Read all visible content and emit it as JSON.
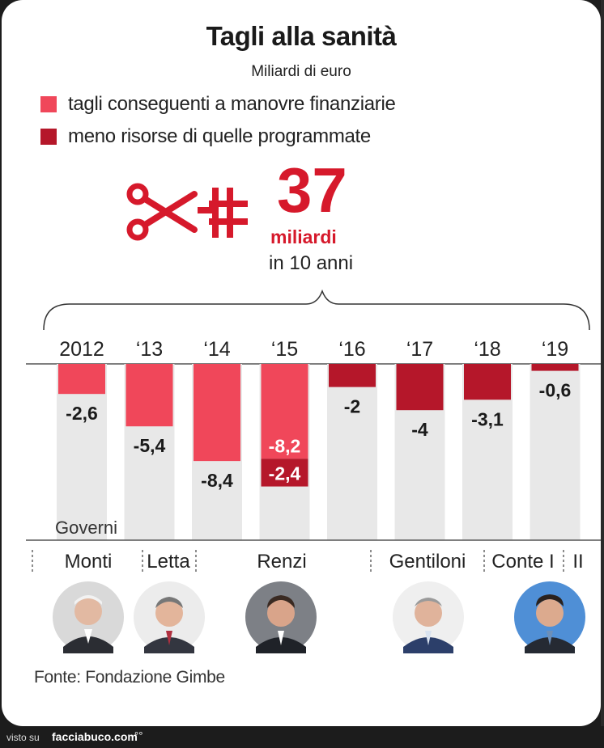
{
  "colors": {
    "pink": "#f0475a",
    "dark_red": "#b5172a",
    "big_red": "#d6192b",
    "column_bg": "#e8e8e8"
  },
  "legend": [
    {
      "label": "tagli conseguenti a manovre finanziarie",
      "color": "#f0475a"
    },
    {
      "label": "meno risorse di quelle programmate",
      "color": "#b5172a"
    }
  ],
  "headline": {
    "value": "37",
    "unit": "miliardi",
    "period": "in 10 anni",
    "icon": "scissors-cutting-cross-icon"
  },
  "chart_data": {
    "type": "bar",
    "title": "Tagli alla sanità",
    "subtitle": "Miliardi di euro",
    "categories": [
      "2012",
      "‘13",
      "‘14",
      "‘15",
      "‘16",
      "‘17",
      "‘18",
      "‘19"
    ],
    "series": [
      {
        "name": "tagli conseguenti a manovre finanziarie",
        "values": [
          -2.6,
          -5.4,
          -8.4,
          -8.2,
          0,
          0,
          0,
          0
        ]
      },
      {
        "name": "meno risorse di quelle programmate",
        "values": [
          0,
          0,
          0,
          -2.4,
          -2,
          -4,
          -3.1,
          -0.6
        ]
      }
    ],
    "value_labels": [
      [
        "-2,6",
        "-5,4",
        "-8,4",
        "-8,2",
        "",
        "",
        "",
        ""
      ],
      [
        "",
        "",
        "",
        "-2,4",
        "-2",
        "-4",
        "-3,1",
        "-0,6"
      ]
    ],
    "ylim": [
      -16,
      0
    ],
    "stacked": true,
    "governments_label": "Governi",
    "governments": [
      {
        "name": "Monti"
      },
      {
        "name": "Letta"
      },
      {
        "name": "Renzi"
      },
      {
        "name": "Gentiloni"
      },
      {
        "name": "Conte I"
      },
      {
        "name": "II"
      }
    ]
  },
  "source": "Fonte: Fondazione Gimbe",
  "footer": {
    "prefix": "visto su",
    "site": "facciabuco.com",
    "logo": "°°"
  }
}
